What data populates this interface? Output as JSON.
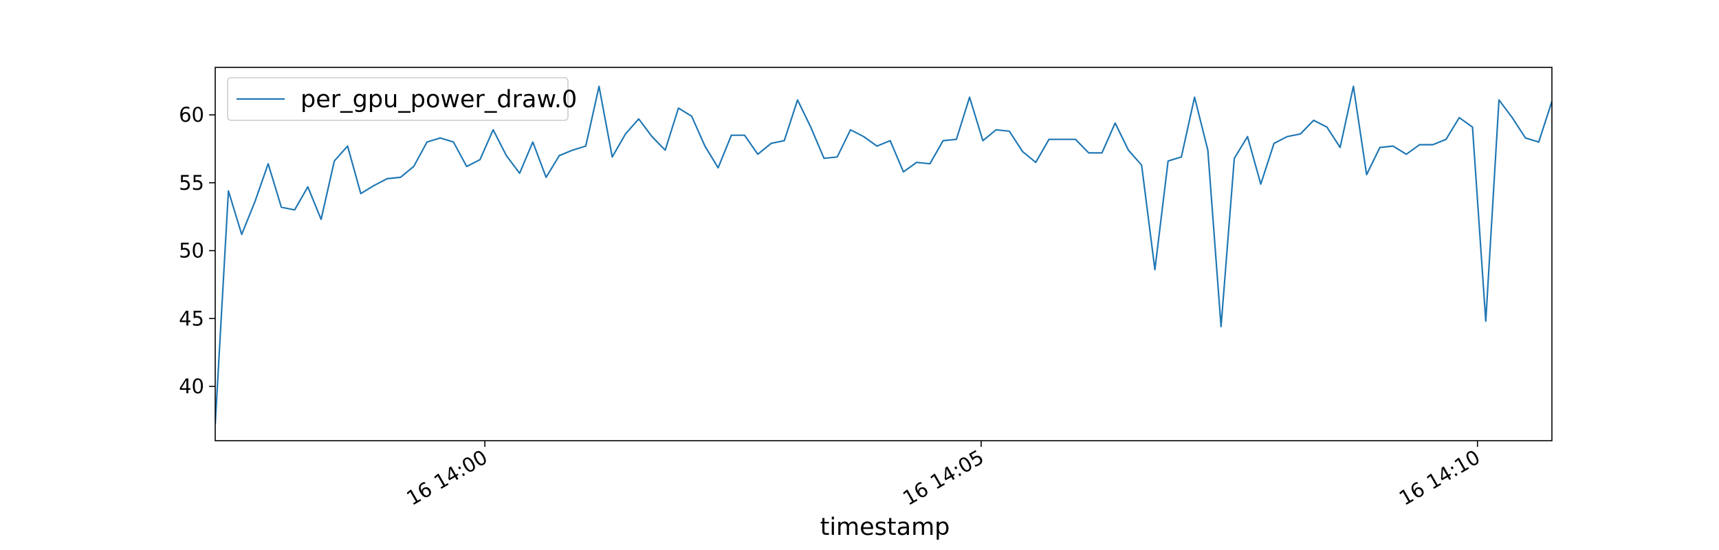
{
  "chart_data": {
    "type": "line",
    "title": "",
    "xlabel": "timestamp",
    "ylabel": "",
    "x_unit": "seconds",
    "xlim": [
      -1200,
      5550
    ],
    "ylim": [
      36,
      63.5
    ],
    "x_ticks": [
      {
        "value": 0,
        "label": "16 14:00"
      },
      {
        "value": 300,
        "label": "16 14:05"
      },
      {
        "value": 600,
        "label": "16 14:10"
      }
    ],
    "y_ticks": [
      40,
      45,
      50,
      55,
      60
    ],
    "legend": {
      "position": "upper-left",
      "entries": [
        "per_gpu_power_draw.0"
      ]
    },
    "colors": {
      "series": "#1f77b4",
      "axes": "#000000",
      "legend_border": "#cccccc"
    },
    "series": [
      {
        "name": "per_gpu_power_draw.0",
        "x": [
          -163,
          -155,
          -147,
          -139,
          -131,
          -123,
          -115,
          -107,
          -99,
          -91,
          -83,
          -75,
          -67,
          -59,
          -51,
          -43,
          -35,
          -27,
          -19,
          -11,
          -3,
          5,
          13,
          21,
          29,
          37,
          45,
          53,
          61,
          69,
          77,
          85,
          93,
          101,
          109,
          117,
          125,
          133,
          141,
          149,
          157,
          165,
          173,
          181,
          189,
          197,
          205,
          213,
          221,
          229,
          237,
          245,
          253,
          261,
          269,
          277,
          285,
          293,
          301,
          309,
          317,
          325,
          333,
          341,
          349,
          357,
          365,
          373,
          381,
          389,
          397,
          405,
          413,
          421,
          429,
          437,
          445,
          453,
          461,
          469,
          477,
          485,
          493,
          501,
          509,
          517,
          525,
          533,
          541,
          549,
          557,
          565,
          573,
          581,
          589,
          597,
          605,
          613,
          621,
          629,
          637,
          645
        ],
        "y": [
          37.2,
          54.4,
          51.2,
          53.6,
          56.4,
          53.2,
          53.0,
          54.7,
          52.3,
          56.6,
          57.7,
          54.2,
          54.8,
          55.3,
          55.4,
          56.2,
          58.0,
          58.3,
          58.0,
          56.2,
          56.7,
          58.9,
          57.0,
          55.7,
          58.0,
          55.4,
          57.0,
          57.4,
          57.7,
          62.1,
          56.9,
          58.6,
          59.7,
          58.4,
          57.4,
          60.5,
          59.9,
          57.7,
          56.1,
          58.5,
          58.5,
          57.1,
          57.9,
          58.1,
          61.1,
          59.1,
          56.8,
          56.9,
          58.9,
          58.4,
          57.7,
          58.1,
          55.8,
          56.5,
          56.4,
          58.1,
          58.2,
          61.3,
          58.1,
          58.9,
          58.8,
          57.3,
          56.5,
          58.2,
          58.2,
          58.2,
          57.2,
          57.2,
          59.4,
          57.4,
          56.3,
          48.6,
          56.6,
          56.9,
          61.3,
          57.4,
          44.4,
          56.8,
          58.4,
          54.9,
          57.9,
          58.4,
          58.6,
          59.6,
          59.1,
          57.6,
          62.1,
          55.6,
          57.6,
          57.7,
          57.1,
          57.8,
          57.8,
          58.2,
          59.8,
          59.1,
          44.8,
          61.1,
          59.8,
          58.3,
          58.0,
          61.0
        ]
      }
    ]
  }
}
